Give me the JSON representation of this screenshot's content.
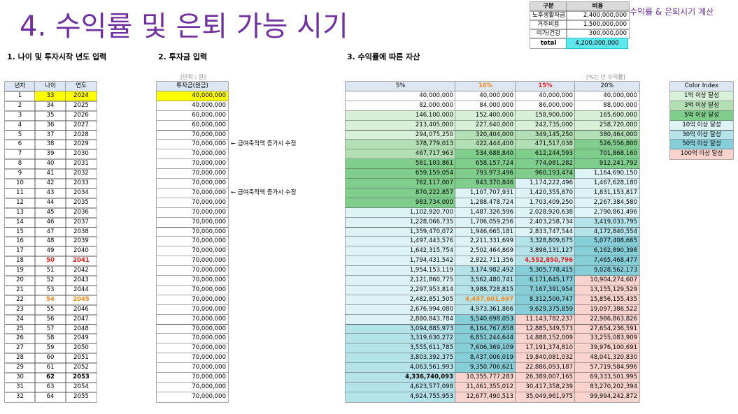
{
  "title": "4. 수익률 및 은퇴 가능 시기",
  "calc_label": "수익률 & 은퇴시기 계산",
  "cost_table": {
    "header": [
      "구분",
      "비용"
    ],
    "rows": [
      [
        "노후생활자금",
        "2,400,000,000"
      ],
      [
        "거주비용",
        "1,500,000,000"
      ],
      [
        "여가/건강",
        "300,000,000"
      ]
    ],
    "total": [
      "total",
      "4,200,000,000"
    ]
  },
  "sections": [
    "1. 나이 및 투자시작 년도 입력",
    "2. 투자금 입력",
    "3. 수익률에 따른 자산"
  ],
  "unit_note": "[단위 : 원]",
  "rate_note": "[%는 년 수익률]",
  "age_table": {
    "header": [
      "년차",
      "나이",
      "연도"
    ],
    "rows": [
      [
        1,
        33,
        2024
      ],
      [
        2,
        34,
        2025
      ],
      [
        3,
        35,
        2026
      ],
      [
        4,
        36,
        2027
      ],
      [
        5,
        37,
        2028
      ],
      [
        6,
        38,
        2029
      ],
      [
        7,
        39,
        2030
      ],
      [
        8,
        40,
        2031
      ],
      [
        9,
        41,
        2032
      ],
      [
        10,
        42,
        2033
      ],
      [
        11,
        43,
        2034
      ],
      [
        12,
        44,
        2035
      ],
      [
        13,
        45,
        2036
      ],
      [
        14,
        46,
        2037
      ],
      [
        15,
        47,
        2038
      ],
      [
        16,
        48,
        2039
      ],
      [
        17,
        49,
        2040
      ],
      [
        18,
        50,
        2041
      ],
      [
        19,
        51,
        2042
      ],
      [
        20,
        52,
        2043
      ],
      [
        21,
        53,
        2044
      ],
      [
        22,
        54,
        2045
      ],
      [
        23,
        55,
        2046
      ],
      [
        24,
        56,
        2047
      ],
      [
        25,
        57,
        2048
      ],
      [
        26,
        58,
        2049
      ],
      [
        27,
        59,
        2050
      ],
      [
        28,
        60,
        2051
      ],
      [
        29,
        61,
        2052
      ],
      [
        30,
        62,
        2053
      ],
      [
        31,
        63,
        2054
      ],
      [
        32,
        64,
        2055
      ]
    ]
  },
  "invest_table": {
    "header": "투자금(원금)",
    "rows": [
      "40,000,000",
      "40,000,000",
      "60,000,000",
      "60,000,000",
      "70,000,000",
      "70,000,000",
      "70,000,000",
      "70,000,000",
      "70,000,000",
      "70,000,000",
      "70,000,000",
      "70,000,000",
      "70,000,000",
      "70,000,000",
      "70,000,000",
      "70,000,000",
      "70,000,000",
      "70,000,000",
      "70,000,000",
      "70,000,000",
      "70,000,000",
      "70,000,000",
      "70,000,000",
      "70,000,000",
      "70,000,000",
      "70,000,000",
      "70,000,000",
      "70,000,000",
      "70,000,000",
      "70,000,000",
      "70,000,000",
      "70,000,000"
    ]
  },
  "invest_notes": [
    "← 급여축적액 증가시 수정",
    "← 급여축적액 증가시 수정"
  ],
  "asset_table": {
    "header": [
      "5%",
      "10%",
      "15%",
      "20%"
    ],
    "rows": [
      [
        "40,000,000",
        "40,000,000",
        "40,000,000",
        "40,000,000"
      ],
      [
        "82,000,000",
        "84,000,000",
        "86,000,000",
        "88,000,000"
      ],
      [
        "146,100,000",
        "152,400,000",
        "158,900,000",
        "165,600,000"
      ],
      [
        "213,405,000",
        "227,640,000",
        "242,735,000",
        "258,720,000"
      ],
      [
        "294,075,250",
        "320,404,000",
        "349,145,250",
        "380,464,000"
      ],
      [
        "378,779,013",
        "422,444,400",
        "471,517,038",
        "526,556,800"
      ],
      [
        "467,717,963",
        "534,688,840",
        "612,244,593",
        "701,868,160"
      ],
      [
        "561,103,861",
        "658,157,724",
        "774,081,282",
        "912,241,792"
      ],
      [
        "659,159,054",
        "793,973,496",
        "960,193,474",
        "1,164,690,150"
      ],
      [
        "762,117,007",
        "943,370,846",
        "1,174,222,496",
        "1,467,628,180"
      ],
      [
        "870,222,857",
        "1,107,707,931",
        "1,420,355,870",
        "1,831,153,817"
      ],
      [
        "983,734,000",
        "1,288,478,724",
        "1,703,409,250",
        "2,267,384,580"
      ],
      [
        "1,102,920,700",
        "1,487,326,596",
        "2,028,920,638",
        "2,790,861,496"
      ],
      [
        "1,228,066,735",
        "1,706,059,256",
        "2,403,258,734",
        "3,419,033,795"
      ],
      [
        "1,359,470,072",
        "1,946,665,181",
        "2,833,747,544",
        "4,172,840,554"
      ],
      [
        "1,497,443,576",
        "2,211,331,699",
        "3,328,809,675",
        "5,077,408,665"
      ],
      [
        "1,642,315,754",
        "2,502,464,869",
        "3,898,131,127",
        "6,162,890,398"
      ],
      [
        "1,794,431,542",
        "2,822,711,356",
        "4,552,850,796",
        "7,465,468,477"
      ],
      [
        "1,954,153,119",
        "3,174,982,492",
        "5,305,778,415",
        "9,028,562,173"
      ],
      [
        "2,121,860,775",
        "3,562,480,741",
        "6,171,645,177",
        "10,904,274,607"
      ],
      [
        "2,297,953,814",
        "3,988,728,815",
        "7,167,391,954",
        "13,155,129,529"
      ],
      [
        "2,482,851,505",
        "4,457,601,697",
        "8,312,500,747",
        "15,856,155,435"
      ],
      [
        "2,676,994,080",
        "4,973,361,866",
        "9,629,375,859",
        "19,097,386,522"
      ],
      [
        "2,880,843,784",
        "5,540,698,053",
        "11,143,782,237",
        "22,986,863,826"
      ],
      [
        "3,094,885,973",
        "6,164,767,858",
        "12,885,349,573",
        "27,654,236,591"
      ],
      [
        "3,319,630,272",
        "6,851,244,644",
        "14,888,152,009",
        "33,255,083,909"
      ],
      [
        "3,555,611,785",
        "7,606,369,109",
        "17,191,374,810",
        "39,976,100,691"
      ],
      [
        "3,803,392,375",
        "8,437,006,019",
        "19,840,081,032",
        "48,041,320,830"
      ],
      [
        "4,063,561,993",
        "9,350,706,621",
        "22,886,093,187",
        "57,719,584,996"
      ],
      [
        "4,336,740,093",
        "10,355,777,283",
        "26,389,007,165",
        "69,333,501,995"
      ],
      [
        "4,623,577,098",
        "11,461,355,012",
        "30,417,358,239",
        "83,270,202,394"
      ],
      [
        "4,924,755,953",
        "12,677,490,513",
        "35,049,961,975",
        "99,994,242,872"
      ]
    ]
  },
  "color_index": {
    "title": "Color Index",
    "items": [
      {
        "label": "1억 이상 달성",
        "color": "#d8f0d8"
      },
      {
        "label": "3억 이상 달성",
        "color": "#b2e0b4"
      },
      {
        "label": "5억 이상 달성",
        "color": "#7fce8c"
      },
      {
        "label": "10억 이상 달성",
        "color": "#def3f6"
      },
      {
        "label": "30억 이상 달성",
        "color": "#b4e3ea"
      },
      {
        "label": "50억 이상 달성",
        "color": "#86cfd9"
      },
      {
        "label": "100억 이상 달성",
        "color": "#f9d3ce"
      }
    ]
  }
}
